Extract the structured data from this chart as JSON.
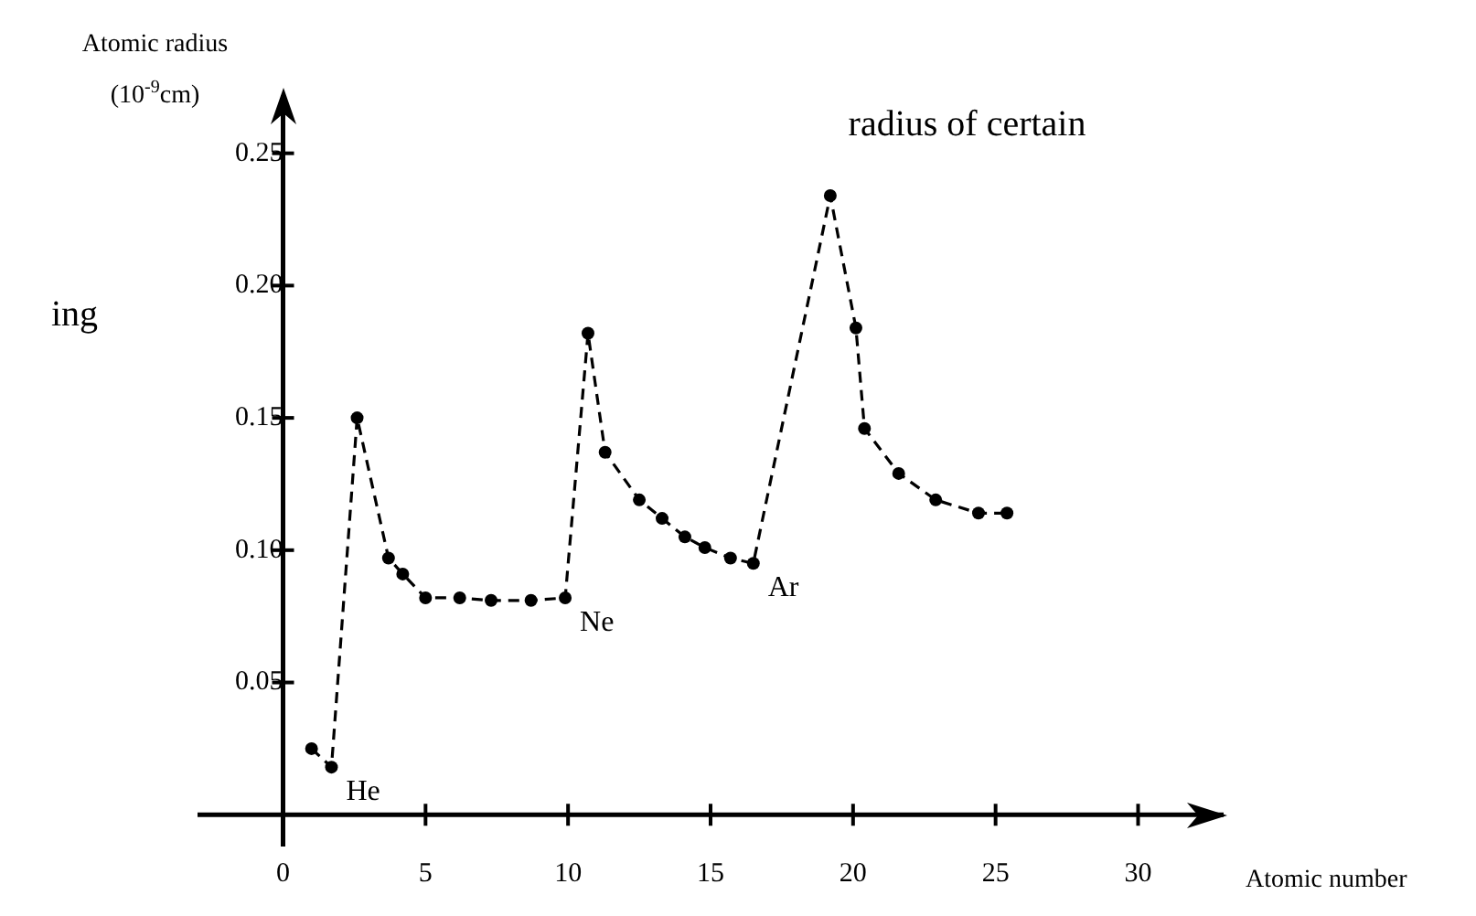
{
  "chart_data": {
    "type": "line",
    "title": "radius of certain",
    "xlabel": "Atomic number",
    "ylabel": "Atomic radius\n(10$^{-9}$cm)",
    "annotations": [
      "ing",
      {
        "text": "He",
        "x": 1.7,
        "y": 0.018
      },
      {
        "text": "Ne",
        "x": 9.9,
        "y": 0.082
      },
      {
        "text": "Ar",
        "x": 16.5,
        "y": 0.095
      }
    ],
    "x": [
      1.0,
      1.7,
      2.6,
      3.7,
      4.2,
      5.0,
      6.2,
      7.3,
      8.7,
      9.9,
      10.7,
      11.3,
      12.5,
      13.3,
      14.1,
      14.8,
      15.7,
      16.5,
      19.2,
      20.1,
      20.4,
      21.6,
      22.9,
      24.4,
      25.4
    ],
    "series": [
      {
        "color": "#000000",
        "values": [
          0.025,
          0.018,
          0.15,
          0.097,
          0.091,
          0.082,
          0.082,
          0.081,
          0.081,
          0.082,
          0.182,
          0.137,
          0.119,
          0.112,
          0.105,
          0.101,
          0.097,
          0.095,
          0.234,
          0.184,
          0.146,
          0.129,
          0.119,
          0.114,
          0.114
        ]
      }
    ],
    "xlim": [
      -3,
      33
    ],
    "ylim": [
      -0.012,
      0.272
    ],
    "xticks": [
      0,
      5,
      10,
      15,
      20,
      25,
      30
    ],
    "yticks": [
      0.05,
      {
        "value": 0.1,
        "label": "0.10"
      },
      0.15,
      {
        "value": 0.2,
        "label": "0.20"
      },
      0.25
    ],
    "marker": "circle",
    "line_style": "dashed",
    "grid": false,
    "legend": false
  }
}
